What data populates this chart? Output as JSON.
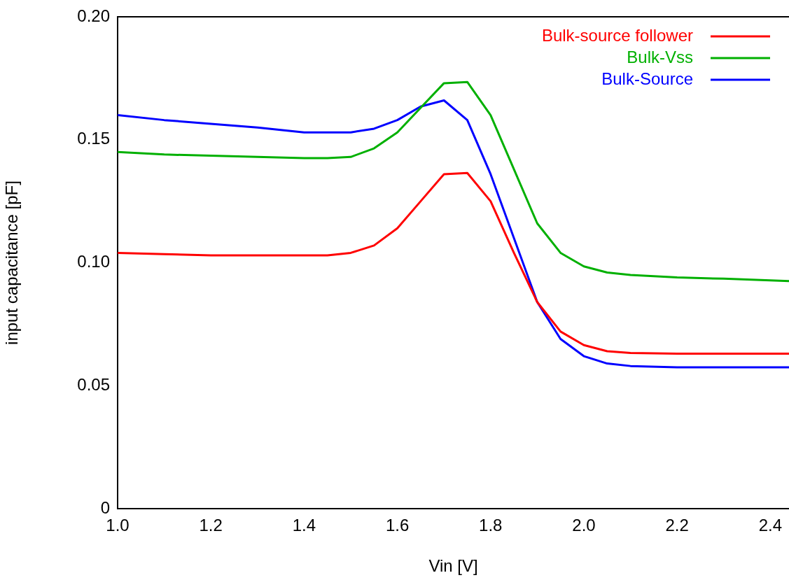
{
  "chart_data": {
    "type": "line",
    "xlabel": "Vin [V]",
    "ylabel": "input capacitance [pF]",
    "x": [
      1.0,
      1.1,
      1.2,
      1.3,
      1.4,
      1.45,
      1.5,
      1.55,
      1.6,
      1.65,
      1.7,
      1.75,
      1.8,
      1.85,
      1.9,
      1.95,
      2.0,
      2.05,
      2.1,
      2.2,
      2.3,
      2.44
    ],
    "series": [
      {
        "name": "Bulk-source follower",
        "color": "#ff0000",
        "values": [
          0.104,
          0.1035,
          0.103,
          0.103,
          0.103,
          0.103,
          0.104,
          0.107,
          0.114,
          0.125,
          0.136,
          0.1365,
          0.125,
          0.104,
          0.084,
          0.072,
          0.0665,
          0.064,
          0.0633,
          0.063,
          0.063,
          0.063
        ]
      },
      {
        "name": "Bulk-Vss",
        "color": "#00b000",
        "values": [
          0.145,
          0.144,
          0.1435,
          0.143,
          0.1425,
          0.1425,
          0.143,
          0.1465,
          0.153,
          0.163,
          0.173,
          0.1735,
          0.16,
          0.138,
          0.116,
          0.104,
          0.0985,
          0.096,
          0.095,
          0.094,
          0.0935,
          0.0925
        ]
      },
      {
        "name": "Bulk-Source",
        "color": "#0000ff",
        "values": [
          0.16,
          0.158,
          0.1565,
          0.155,
          0.153,
          0.153,
          0.153,
          0.1545,
          0.158,
          0.1635,
          0.166,
          0.158,
          0.136,
          0.11,
          0.084,
          0.069,
          0.062,
          0.059,
          0.058,
          0.0575,
          0.0575,
          0.0575
        ]
      }
    ],
    "xlim": [
      1.0,
      2.44
    ],
    "xticks": [
      {
        "value": 1.0,
        "label": "1.0"
      },
      {
        "value": 1.2,
        "label": "1.2"
      },
      {
        "value": 1.4,
        "label": "1.4"
      },
      {
        "value": 1.6,
        "label": "1.6"
      },
      {
        "value": 1.8,
        "label": "1.8"
      },
      {
        "value": 2.0,
        "label": "2.0"
      },
      {
        "value": 2.2,
        "label": "2.2"
      },
      {
        "value": 2.4,
        "label": "2.4"
      }
    ],
    "ylim": [
      0,
      0.2
    ],
    "yticks": [
      0,
      {
        "value": 0.05,
        "label": "0.05"
      },
      {
        "value": 0.1,
        "label": "0.10"
      },
      {
        "value": 0.15,
        "label": "0.15"
      },
      {
        "value": 0.2,
        "label": "0.20"
      }
    ],
    "grid": false,
    "legend": "top right",
    "marker": "none",
    "line_style": "solid"
  }
}
